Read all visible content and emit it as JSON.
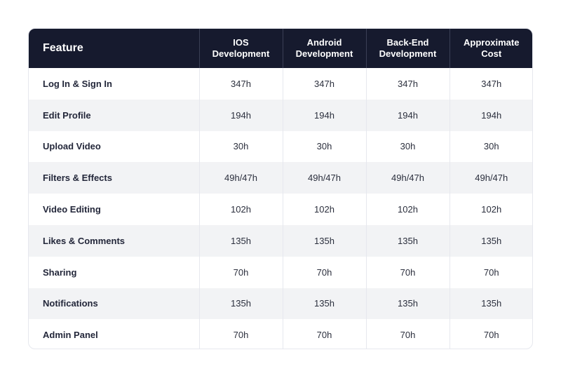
{
  "table": {
    "headers": {
      "feature": "Feature",
      "ios": [
        "IOS",
        "Development"
      ],
      "android": [
        "Android",
        "Development"
      ],
      "backend": [
        "Back-End",
        "Development"
      ],
      "cost": [
        "Approximate",
        "Cost"
      ]
    },
    "rows": [
      {
        "feature": "Log In & Sign In",
        "ios": "347h",
        "android": "347h",
        "backend": "347h",
        "cost": "347h"
      },
      {
        "feature": "Edit Profile",
        "ios": "194h",
        "android": "194h",
        "backend": "194h",
        "cost": "194h"
      },
      {
        "feature": "Upload Video",
        "ios": "30h",
        "android": "30h",
        "backend": "30h",
        "cost": "30h"
      },
      {
        "feature": "Filters & Effects",
        "ios": "49h/47h",
        "android": "49h/47h",
        "backend": "49h/47h",
        "cost": "49h/47h"
      },
      {
        "feature": "Video Editing",
        "ios": "102h",
        "android": "102h",
        "backend": "102h",
        "cost": "102h"
      },
      {
        "feature": "Likes & Comments",
        "ios": "135h",
        "android": "135h",
        "backend": "135h",
        "cost": "135h"
      },
      {
        "feature": "Sharing",
        "ios": "70h",
        "android": "70h",
        "backend": "70h",
        "cost": "70h"
      },
      {
        "feature": "Notifications",
        "ios": "135h",
        "android": "135h",
        "backend": "135h",
        "cost": "135h"
      },
      {
        "feature": "Admin Panel",
        "ios": "70h",
        "android": "70h",
        "backend": "70h",
        "cost": "70h"
      }
    ]
  },
  "colors": {
    "header_bg": "#161a2e",
    "header_text": "#ffffff",
    "stripe_bg": "#f2f3f5",
    "body_text": "#2b2f3d"
  }
}
